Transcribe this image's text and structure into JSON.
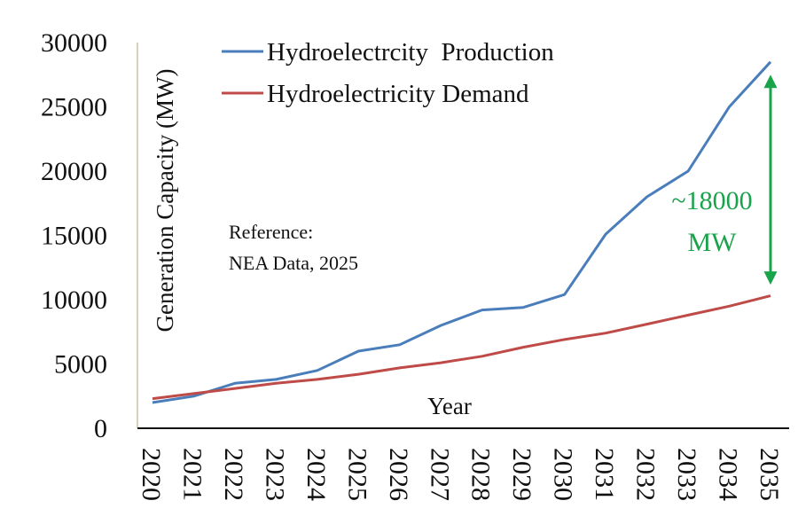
{
  "chart_data": {
    "type": "line",
    "title": "",
    "xlabel": "Year",
    "ylabel": "Generation Capacity (MW)",
    "ylim": [
      0,
      30000
    ],
    "yticks": [
      0,
      5000,
      10000,
      15000,
      20000,
      25000,
      30000
    ],
    "x": [
      "2020",
      "2021",
      "2022",
      "2023",
      "2024",
      "2025",
      "2026",
      "2027",
      "2028",
      "2029",
      "2030",
      "2031",
      "2032",
      "2033",
      "2034",
      "2035"
    ],
    "series": [
      {
        "name": "Hydroelectrcity  Production",
        "color": "#4a7ebb",
        "values": [
          2000,
          2500,
          3500,
          3800,
          4500,
          6000,
          6500,
          8000,
          9200,
          9400,
          10400,
          15100,
          18000,
          20000,
          25000,
          28500
        ]
      },
      {
        "name": "Hydroelectricity Demand",
        "color": "#be4b48",
        "values": [
          2300,
          2700,
          3100,
          3500,
          3800,
          4200,
          4700,
          5100,
          5600,
          6300,
          6900,
          7400,
          8100,
          8800,
          9500,
          10300
        ]
      }
    ],
    "legend_position": "top",
    "grid": false,
    "annotations": {
      "reference_line1": "Reference:",
      "reference_line2": "NEA Data, 2025",
      "gap_line1": "~18000",
      "gap_line2": "MW",
      "gap_color": "#19a34a",
      "gap_from": 10300,
      "gap_to": 28500
    }
  }
}
